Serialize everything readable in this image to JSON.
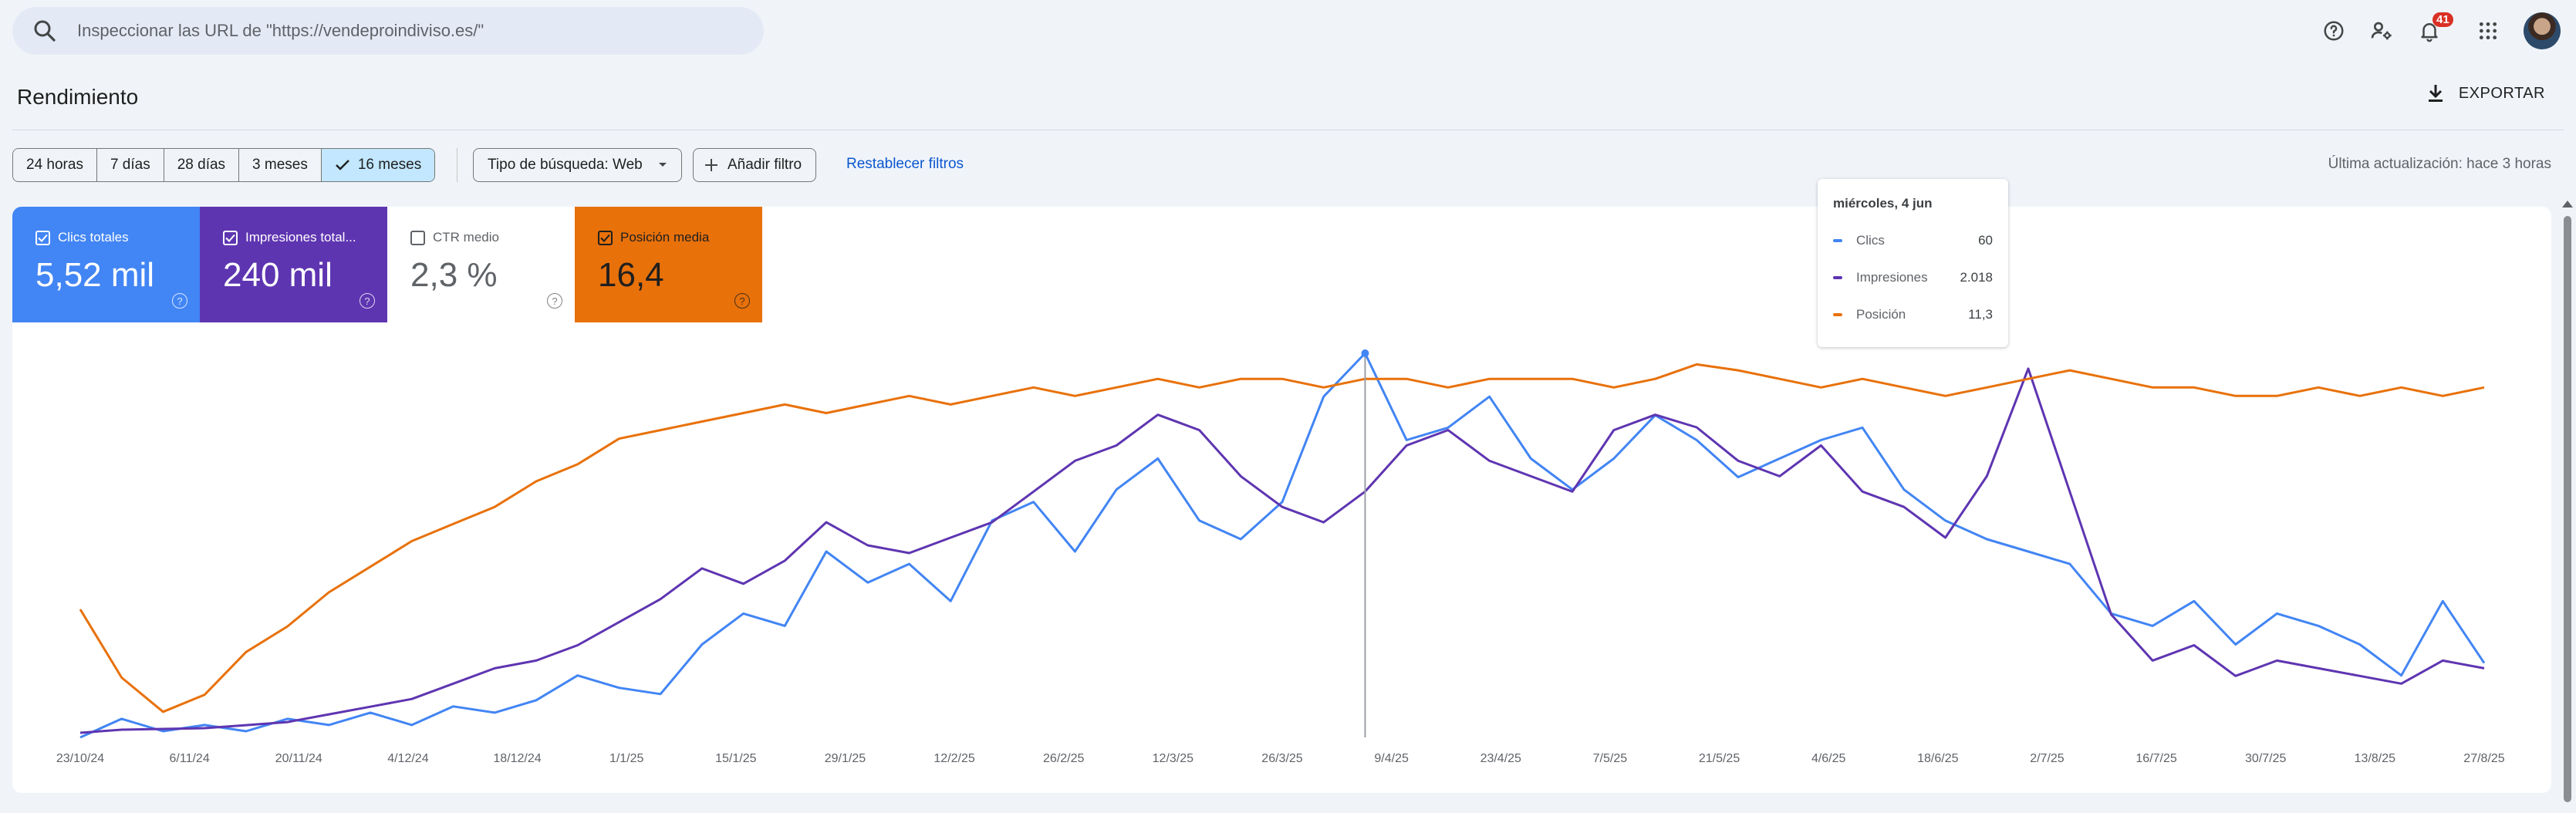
{
  "search": {
    "placeholder": "Inspeccionar las URL de \"https://vendeproindiviso.es/\""
  },
  "topbar": {
    "icons": [
      "help-icon",
      "manage-users-icon",
      "notifications-icon",
      "apps-grid-icon"
    ],
    "notifications_count": "41",
    "avatar": "user-avatar"
  },
  "header": {
    "title": "Rendimiento",
    "export_label": "EXPORTAR"
  },
  "filters": {
    "ranges": [
      {
        "label": "24 horas",
        "active": false
      },
      {
        "label": "7 días",
        "active": false
      },
      {
        "label": "28 días",
        "active": false
      },
      {
        "label": "3 meses",
        "active": false
      },
      {
        "label": "16 meses",
        "active": true
      }
    ],
    "search_type": "Tipo de búsqueda: Web",
    "add_filter": "Añadir filtro",
    "reset": "Restablecer filtros",
    "last_update": "Última actualización: hace 3 horas"
  },
  "metrics": [
    {
      "label": "Clics totales",
      "value": "5,52 mil",
      "checked": true,
      "color": "#4285f4"
    },
    {
      "label": "Impresiones total...",
      "value": "240 mil",
      "checked": true,
      "color": "#5e35b1"
    },
    {
      "label": "CTR medio",
      "value": "2,3 %",
      "checked": false,
      "color": "#ffffff"
    },
    {
      "label": "Posición media",
      "value": "16,4",
      "checked": true,
      "color": "#e8710a"
    }
  ],
  "tooltip": {
    "date": "miércoles, 4 jun",
    "rows": [
      {
        "label": "Clics",
        "value": "60",
        "color": "#4285f4"
      },
      {
        "label": "Impresiones",
        "value": "2.018",
        "color": "#5e35b1"
      },
      {
        "label": "Posición",
        "value": "11,3",
        "color": "#e8710a"
      }
    ]
  },
  "chart_data": {
    "type": "line",
    "x_tick_labels": [
      "23/10/24",
      "6/11/24",
      "20/11/24",
      "4/12/24",
      "18/12/24",
      "1/1/25",
      "15/1/25",
      "29/1/25",
      "12/2/25",
      "26/2/25",
      "12/3/25",
      "26/3/25",
      "9/4/25",
      "23/4/25",
      "7/5/25",
      "21/5/25",
      "4/6/25",
      "18/6/25",
      "2/7/25",
      "16/7/25",
      "30/7/25",
      "13/8/25",
      "27/8/25"
    ],
    "series": [
      {
        "name": "Clics",
        "color": "#4285f4",
        "values": [
          0,
          3,
          1,
          2,
          1,
          3,
          2,
          4,
          2,
          5,
          4,
          6,
          10,
          8,
          7,
          15,
          20,
          18,
          30,
          25,
          28,
          22,
          35,
          38,
          30,
          40,
          45,
          35,
          32,
          38,
          55,
          62,
          48,
          50,
          55,
          45,
          40,
          45,
          52,
          48,
          42,
          45,
          48,
          50,
          40,
          35,
          32,
          30,
          28,
          20,
          18,
          22,
          15,
          20,
          18,
          15,
          10,
          22,
          12
        ]
      },
      {
        "name": "Impresiones",
        "color": "#5e35b1",
        "values": [
          30,
          50,
          55,
          60,
          80,
          100,
          150,
          200,
          250,
          350,
          450,
          500,
          600,
          750,
          900,
          1100,
          1000,
          1150,
          1400,
          1250,
          1200,
          1300,
          1400,
          1600,
          1800,
          1900,
          2100,
          2000,
          1700,
          1500,
          1400,
          1600,
          1900,
          2000,
          1800,
          1700,
          1600,
          2000,
          2100,
          2018,
          1800,
          1700,
          1900,
          1600,
          1500,
          1300,
          1700,
          2400,
          1600,
          800,
          500,
          600,
          400,
          500,
          450,
          400,
          350,
          500,
          450
        ]
      },
      {
        "name": "Posición",
        "color": "#e8710a",
        "values": [
          40,
          48,
          52,
          50,
          45,
          42,
          38,
          35,
          32,
          30,
          28,
          25,
          23,
          20,
          19,
          18,
          17,
          16,
          17,
          16,
          15,
          16,
          15,
          14,
          15,
          14,
          13,
          14,
          13,
          13,
          14,
          13,
          13,
          14,
          13,
          13,
          13,
          14,
          13,
          11.3,
          12,
          13,
          14,
          13,
          14,
          15,
          14,
          13,
          12,
          13,
          14,
          14,
          15,
          15,
          14,
          15,
          14,
          15,
          14
        ]
      }
    ]
  }
}
